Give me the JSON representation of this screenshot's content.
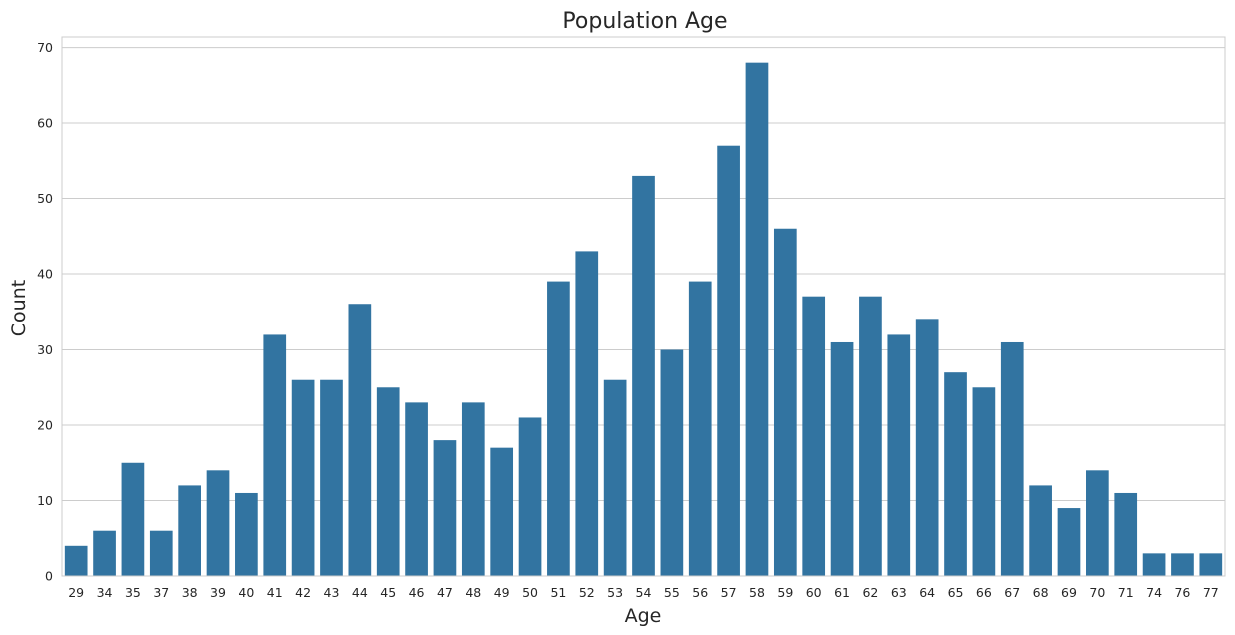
{
  "chart_data": {
    "type": "bar",
    "title": "Population Age",
    "xlabel": "Age",
    "ylabel": "Count",
    "categories": [
      "29",
      "34",
      "35",
      "37",
      "38",
      "39",
      "40",
      "41",
      "42",
      "43",
      "44",
      "45",
      "46",
      "47",
      "48",
      "49",
      "50",
      "51",
      "52",
      "53",
      "54",
      "55",
      "56",
      "57",
      "58",
      "59",
      "60",
      "61",
      "62",
      "63",
      "64",
      "65",
      "66",
      "67",
      "68",
      "69",
      "70",
      "71",
      "74",
      "76",
      "77"
    ],
    "values": [
      4,
      6,
      15,
      6,
      12,
      14,
      11,
      32,
      26,
      26,
      36,
      25,
      23,
      18,
      23,
      17,
      21,
      39,
      43,
      26,
      53,
      30,
      39,
      57,
      68,
      46,
      37,
      31,
      37,
      32,
      34,
      27,
      25,
      31,
      12,
      9,
      14,
      11,
      3,
      3,
      3
    ],
    "ylim": [
      0,
      71.4
    ],
    "yticks": [
      0,
      10,
      20,
      30,
      40,
      50,
      60,
      70
    ],
    "grid": "y",
    "legend": "none",
    "bar_color": "#3274a1",
    "grid_color": "#cccccc",
    "spine_color": "#cccccc"
  }
}
